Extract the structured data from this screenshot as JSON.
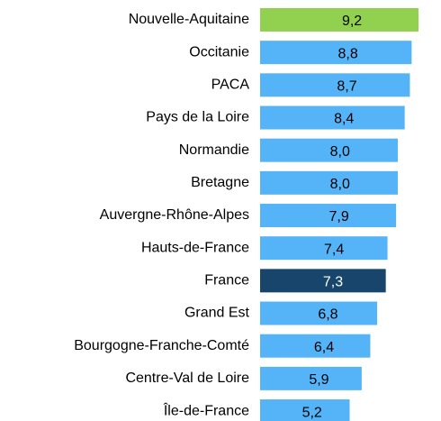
{
  "chart_data": {
    "type": "bar",
    "orientation": "horizontal",
    "categories": [
      "Nouvelle-Aquitaine",
      "Occitanie",
      "PACA",
      "Pays de la Loire",
      "Normandie",
      "Bretagne",
      "Auvergne-Rhône-Alpes",
      "Hauts-de-France",
      "France",
      "Grand Est",
      "Bourgogne-Franche-Comté",
      "Centre-Val de Loire",
      "Île-de-France"
    ],
    "values": [
      9.2,
      8.8,
      8.7,
      8.4,
      8.0,
      8.0,
      7.9,
      7.4,
      7.3,
      6.8,
      6.4,
      5.9,
      5.2
    ],
    "value_labels": [
      "9,2",
      "8,8",
      "8,7",
      "8,4",
      "8,0",
      "8,0",
      "7,9",
      "7,4",
      "7,3",
      "6,8",
      "6,4",
      "5,9",
      "5,2"
    ],
    "colors": [
      "#92d050",
      "#55b4f7",
      "#55b4f7",
      "#55b4f7",
      "#55b4f7",
      "#55b4f7",
      "#55b4f7",
      "#55b4f7",
      "#17456b",
      "#55b4f7",
      "#55b4f7",
      "#55b4f7",
      "#55b4f7"
    ],
    "label_colors": [
      "#000000",
      "#000000",
      "#000000",
      "#000000",
      "#000000",
      "#000000",
      "#000000",
      "#000000",
      "#ffffff",
      "#000000",
      "#000000",
      "#000000",
      "#000000"
    ]
  }
}
